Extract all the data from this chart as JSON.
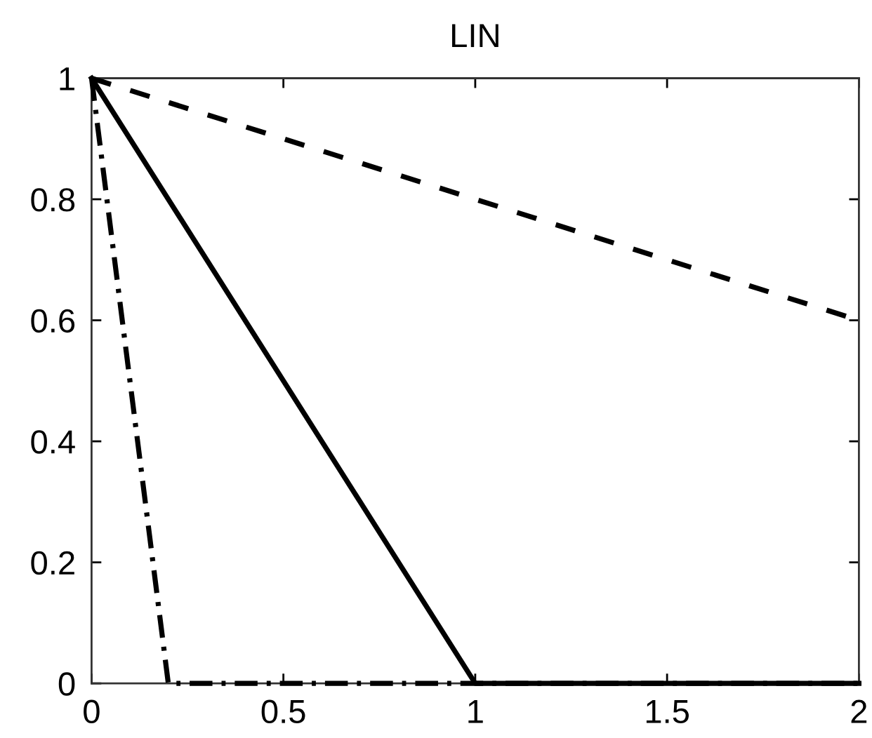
{
  "chart_data": {
    "type": "line",
    "title": "LIN",
    "xlim": [
      0,
      2
    ],
    "ylim": [
      0,
      1
    ],
    "xticks": [
      0,
      0.5,
      1,
      1.5,
      2
    ],
    "yticks": [
      0,
      0.2,
      0.4,
      0.6,
      0.8,
      1
    ],
    "series": [
      {
        "color": "#000000",
        "line_style": "dashed",
        "x": [
          0,
          2
        ],
        "values": [
          1,
          0.6
        ]
      },
      {
        "color": "#000000",
        "line_style": "solid",
        "x": [
          0,
          1,
          2
        ],
        "values": [
          1,
          0,
          0
        ]
      },
      {
        "color": "#000000",
        "line_style": "dashdot",
        "x": [
          0,
          0.2,
          2
        ],
        "values": [
          1,
          0,
          0
        ]
      }
    ]
  }
}
